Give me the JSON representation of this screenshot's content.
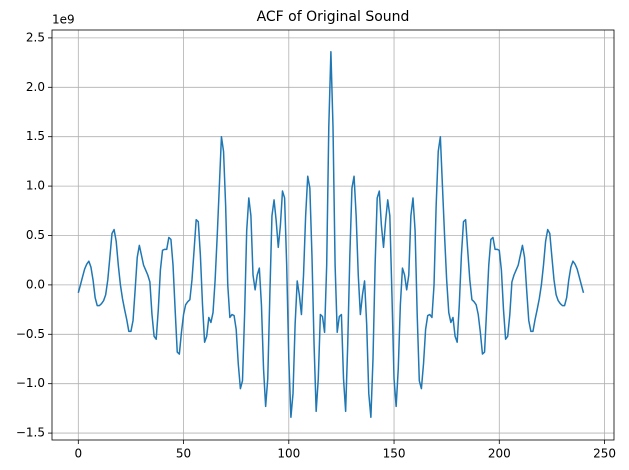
{
  "chart_data": {
    "type": "line",
    "title": "ACF of Original Sound",
    "offset_label": "1e9",
    "x": [
      0,
      1,
      2,
      3,
      4,
      5,
      6,
      7,
      8,
      9,
      10,
      11,
      12,
      13,
      14,
      15,
      16,
      17,
      18,
      19,
      20,
      21,
      22,
      23,
      24,
      25,
      26,
      27,
      28,
      29,
      30,
      31,
      32,
      33,
      34,
      35,
      36,
      37,
      38,
      39,
      40,
      41,
      42,
      43,
      44,
      45,
      46,
      47,
      48,
      49,
      50,
      51,
      52,
      53,
      54,
      55,
      56,
      57,
      58,
      59,
      60,
      61,
      62,
      63,
      64,
      65,
      66,
      67,
      68,
      69,
      70,
      71,
      72,
      73,
      74,
      75,
      76,
      77,
      78,
      79,
      80,
      81,
      82,
      83,
      84,
      85,
      86,
      87,
      88,
      89,
      90,
      91,
      92,
      93,
      94,
      95,
      96,
      97,
      98,
      99,
      100,
      101,
      102,
      103,
      104,
      105,
      106,
      107,
      108,
      109,
      110,
      111,
      112,
      113,
      114,
      115,
      116,
      117,
      118,
      119,
      120,
      121,
      122,
      123,
      124,
      125,
      126,
      127,
      128,
      129,
      130,
      131,
      132,
      133,
      134,
      135,
      136,
      137,
      138,
      139,
      140,
      141,
      142,
      143,
      144,
      145,
      146,
      147,
      148,
      149,
      150,
      151,
      152,
      153,
      154,
      155,
      156,
      157,
      158,
      159,
      160,
      161,
      162,
      163,
      164,
      165,
      166,
      167,
      168,
      169,
      170,
      171,
      172,
      173,
      174,
      175,
      176,
      177,
      178,
      179,
      180,
      181,
      182,
      183,
      184,
      185,
      186,
      187,
      188,
      189,
      190,
      191,
      192,
      193,
      194,
      195,
      196,
      197,
      198,
      199,
      200,
      201,
      202,
      203,
      204,
      205,
      206,
      207,
      208,
      209,
      210,
      211,
      212,
      213,
      214,
      215,
      216,
      217,
      218,
      219,
      220,
      221,
      222,
      223,
      224,
      225,
      226,
      227,
      228,
      229,
      230,
      231,
      232,
      233,
      234,
      235,
      236,
      237,
      238,
      239,
      240
    ],
    "series": [
      {
        "name": "ACF",
        "color": "#1f77b4",
        "values": [
          -0.08,
          0.0,
          0.08,
          0.16,
          0.21,
          0.24,
          0.18,
          0.05,
          -0.13,
          -0.21,
          -0.21,
          -0.19,
          -0.16,
          -0.1,
          0.05,
          0.28,
          0.52,
          0.56,
          0.44,
          0.2,
          0.0,
          -0.14,
          -0.25,
          -0.35,
          -0.47,
          -0.47,
          -0.36,
          -0.05,
          0.28,
          0.4,
          0.3,
          0.2,
          0.15,
          0.1,
          0.03,
          -0.3,
          -0.52,
          -0.55,
          -0.25,
          0.15,
          0.35,
          0.36,
          0.36,
          0.48,
          0.46,
          0.2,
          -0.25,
          -0.68,
          -0.7,
          -0.48,
          -0.3,
          -0.2,
          -0.17,
          -0.15,
          0.05,
          0.35,
          0.66,
          0.64,
          0.3,
          -0.2,
          -0.58,
          -0.52,
          -0.33,
          -0.38,
          -0.28,
          0.05,
          0.5,
          1.0,
          1.5,
          1.35,
          0.8,
          0.0,
          -0.33,
          -0.3,
          -0.31,
          -0.45,
          -0.8,
          -1.05,
          -0.97,
          -0.3,
          0.55,
          0.88,
          0.7,
          0.1,
          -0.05,
          0.1,
          0.17,
          -0.2,
          -0.85,
          -1.23,
          -0.95,
          -0.1,
          0.7,
          0.86,
          0.65,
          0.38,
          0.6,
          0.95,
          0.88,
          0.2,
          -0.75,
          -1.34,
          -1.1,
          -0.4,
          0.04,
          -0.1,
          -0.3,
          0.1,
          0.7,
          1.1,
          0.98,
          0.3,
          -0.6,
          -1.28,
          -0.95,
          -0.3,
          -0.32,
          -0.48,
          0.2,
          1.6,
          2.36,
          1.6,
          0.2,
          -0.48,
          -0.32,
          -0.3,
          -0.95,
          -1.28,
          -0.6,
          0.3,
          0.98,
          1.1,
          0.7,
          0.1,
          -0.3,
          -0.1,
          0.04,
          -0.4,
          -1.1,
          -1.34,
          -0.75,
          0.2,
          0.88,
          0.95,
          0.6,
          0.38,
          0.65,
          0.86,
          0.7,
          -0.1,
          -0.95,
          -1.23,
          -0.85,
          -0.2,
          0.17,
          0.1,
          -0.05,
          0.1,
          0.7,
          0.88,
          0.55,
          -0.3,
          -0.97,
          -1.05,
          -0.8,
          -0.45,
          -0.31,
          -0.3,
          -0.33,
          0.0,
          0.8,
          1.35,
          1.5,
          1.0,
          0.5,
          0.05,
          -0.28,
          -0.38,
          -0.33,
          -0.52,
          -0.58,
          -0.2,
          0.3,
          0.64,
          0.66,
          0.35,
          0.05,
          -0.15,
          -0.17,
          -0.2,
          -0.3,
          -0.48,
          -0.7,
          -0.68,
          -0.25,
          0.2,
          0.46,
          0.48,
          0.36,
          0.36,
          0.35,
          0.15,
          -0.25,
          -0.55,
          -0.52,
          -0.3,
          0.03,
          0.1,
          0.15,
          0.2,
          0.3,
          0.4,
          0.28,
          -0.05,
          -0.36,
          -0.47,
          -0.47,
          -0.35,
          -0.25,
          -0.14,
          0.0,
          0.2,
          0.44,
          0.56,
          0.52,
          0.28,
          0.05,
          -0.1,
          -0.16,
          -0.19,
          -0.21,
          -0.21,
          -0.13,
          0.05,
          0.18,
          0.24,
          0.21,
          0.16,
          0.08,
          0.0,
          -0.08
        ]
      }
    ],
    "xlim": [
      -12.5,
      254.5
    ],
    "xticks": [
      0,
      50,
      100,
      150,
      200,
      250
    ],
    "ylim": [
      -1.57,
      2.58
    ],
    "yticks": [
      {
        "value": -1.5,
        "label": "−1.5"
      },
      {
        "value": -1,
        "label": "−1.0"
      },
      {
        "value": -0.5,
        "label": "−0.5"
      },
      {
        "value": 0,
        "label": "0.0"
      },
      {
        "value": 0.5,
        "label": "0.5"
      },
      {
        "value": 1,
        "label": "1.0"
      },
      {
        "value": 1.5,
        "label": "1.5"
      },
      {
        "value": 2,
        "label": "2.0"
      },
      {
        "value": 2.5,
        "label": "2.5"
      }
    ],
    "grid": true
  }
}
